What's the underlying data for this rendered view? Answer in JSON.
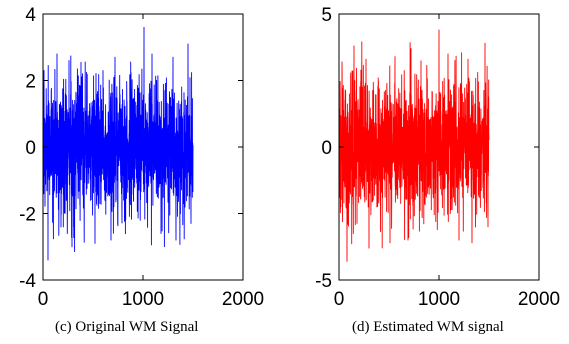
{
  "chart_data": [
    {
      "type": "line",
      "title": "",
      "xlabel": "",
      "ylabel": "",
      "caption": "(c)  Original WM Signal",
      "xlim": [
        0,
        2000
      ],
      "ylim": [
        -4,
        4
      ],
      "xticks": [
        0,
        1000,
        2000
      ],
      "yticks": [
        -4,
        -2,
        0,
        2,
        4
      ],
      "xtick_labels": [
        "0",
        "1000",
        "2000"
      ],
      "ytick_labels": [
        "-4",
        "-2",
        "0",
        "2",
        "4"
      ],
      "grid": false,
      "color": "#0000ff",
      "series": [
        {
          "n_points": 1500,
          "x_range": [
            1,
            1500
          ],
          "approx_std": 1.0,
          "approx_max": 3.6,
          "approx_min": -3.4,
          "peaks": [
            {
              "x": 10,
              "y": 2.3
            },
            {
              "x": 50,
              "y": -3.4
            },
            {
              "x": 140,
              "y": 2.8
            },
            {
              "x": 260,
              "y": 2.6
            },
            {
              "x": 290,
              "y": -3.0
            },
            {
              "x": 520,
              "y": -2.9
            },
            {
              "x": 600,
              "y": 2.3
            },
            {
              "x": 680,
              "y": -2.8
            },
            {
              "x": 720,
              "y": 2.7
            },
            {
              "x": 1010,
              "y": 3.6
            },
            {
              "x": 1090,
              "y": 2.8
            },
            {
              "x": 1180,
              "y": -2.6
            },
            {
              "x": 1300,
              "y": 2.7
            },
            {
              "x": 1330,
              "y": -2.8
            },
            {
              "x": 1450,
              "y": 3.1
            },
            {
              "x": 1480,
              "y": -2.3
            }
          ]
        }
      ]
    },
    {
      "type": "line",
      "title": "",
      "xlabel": "",
      "ylabel": "",
      "caption": "(d) Estimated WM signal",
      "xlim": [
        0,
        2000
      ],
      "ylim": [
        -5,
        5
      ],
      "xticks": [
        0,
        1000,
        2000
      ],
      "yticks": [
        -5,
        0,
        5
      ],
      "xtick_labels": [
        "0",
        "1000",
        "2000"
      ],
      "ytick_labels": [
        "-5",
        "0",
        "5"
      ],
      "grid": false,
      "color": "#ff0000",
      "series": [
        {
          "n_points": 1500,
          "x_range": [
            1,
            1500
          ],
          "approx_std": 1.25,
          "approx_max": 4.4,
          "approx_min": -4.3,
          "peaks": [
            {
              "x": 30,
              "y": 3.2
            },
            {
              "x": 80,
              "y": -4.3
            },
            {
              "x": 150,
              "y": 3.8
            },
            {
              "x": 270,
              "y": 3.3
            },
            {
              "x": 300,
              "y": -3.8
            },
            {
              "x": 510,
              "y": -3.6
            },
            {
              "x": 560,
              "y": 3.4
            },
            {
              "x": 690,
              "y": -3.5
            },
            {
              "x": 720,
              "y": 3.7
            },
            {
              "x": 1000,
              "y": 4.4
            },
            {
              "x": 1090,
              "y": 3.5
            },
            {
              "x": 1200,
              "y": -3.5
            },
            {
              "x": 1290,
              "y": 3.3
            },
            {
              "x": 1330,
              "y": -3.6
            },
            {
              "x": 1460,
              "y": 3.9
            },
            {
              "x": 1490,
              "y": -3.0
            }
          ]
        }
      ]
    }
  ]
}
